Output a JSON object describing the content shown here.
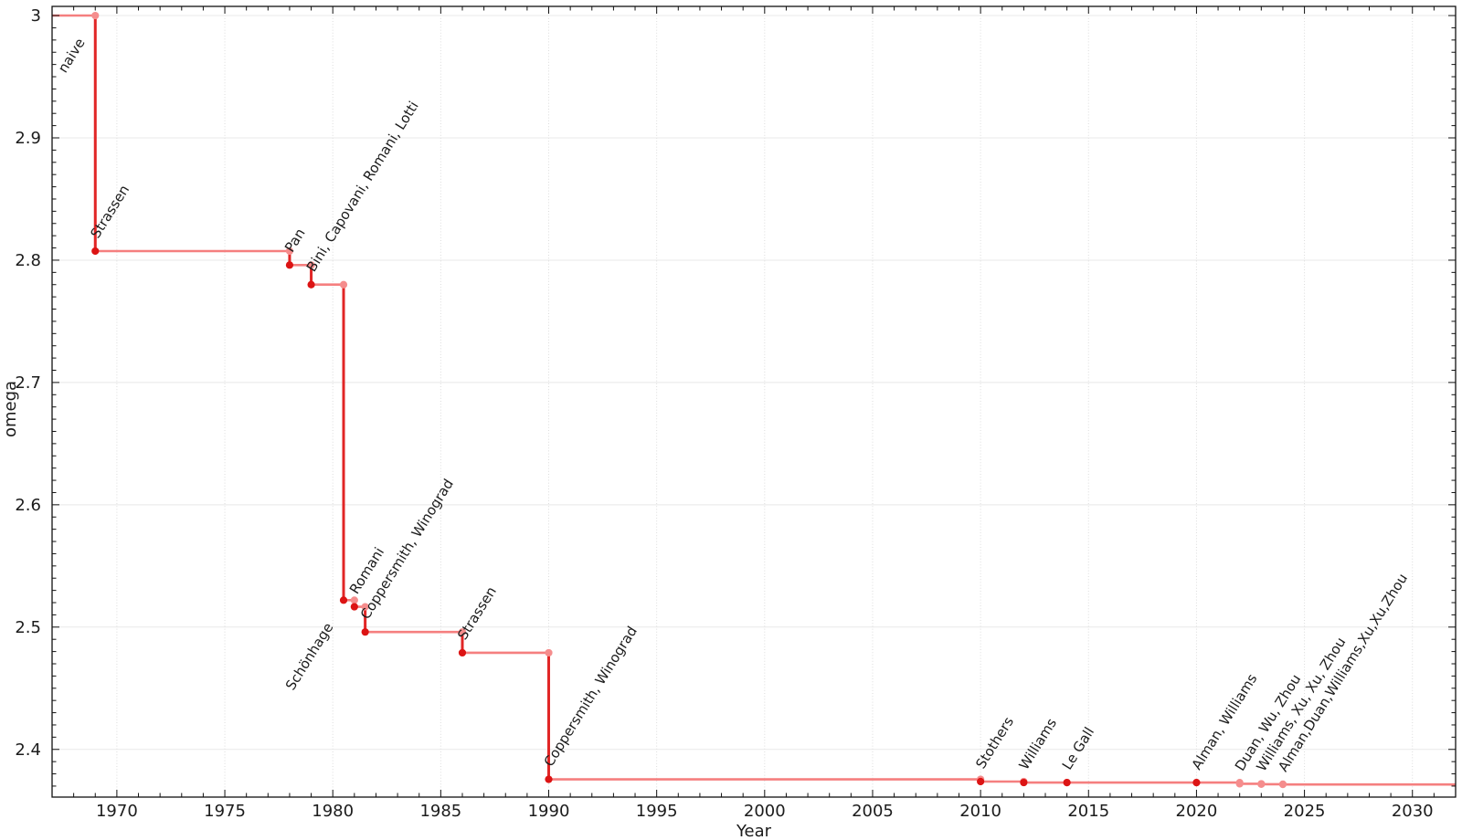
{
  "chart_data": {
    "type": "line",
    "subtype": "step-post",
    "title": "",
    "xlabel": "Year",
    "ylabel": "omega",
    "xlim": [
      1967,
      2032
    ],
    "ylim": [
      2.361,
      3.0075
    ],
    "grid": true,
    "legend": "none",
    "x_ticks": [
      1970,
      1975,
      1980,
      1985,
      1990,
      1995,
      2000,
      2005,
      2010,
      2015,
      2020,
      2025,
      2030
    ],
    "x_tick_labels": [
      "1970",
      "1975",
      "1980",
      "1985",
      "1990",
      "1995",
      "2000",
      "2005",
      "2010",
      "2015",
      "2020",
      "2025",
      "2030"
    ],
    "y_ticks": [
      2.4,
      2.5,
      2.6,
      2.7,
      2.8,
      2.9,
      3.0
    ],
    "y_tick_labels": [
      "2.4",
      "2.5",
      "2.6",
      "2.7",
      "2.8",
      "2.9",
      "3"
    ],
    "x_minor_step": 1,
    "y_minor_step": 0.01,
    "start_omega": 3,
    "start_label": {
      "text": "naive",
      "year": 1969,
      "omega": 3,
      "anchor": "end",
      "color": "#1a1a1a"
    },
    "points": [
      {
        "label": "Strassen",
        "year": 1969,
        "omega": 2.8074,
        "marker": "dark",
        "anchor": "start",
        "label_color": "#1a1a1a"
      },
      {
        "label": "Pan",
        "year": 1978,
        "omega": 2.796,
        "marker": "dark",
        "anchor": "start",
        "label_color": "#1a1a1a"
      },
      {
        "label": "Bini, Capovani, Romani, Lotti",
        "year": 1979,
        "omega": 2.78,
        "marker": "dark",
        "anchor": "start",
        "label_color": "#1a1a1a"
      },
      {
        "label": "Schönhage",
        "year": 1980.5,
        "omega": 2.522,
        "marker": "dark",
        "anchor": "end",
        "label_color": "#1a1a1a"
      },
      {
        "label": "Romani",
        "year": 1981,
        "omega": 2.5166,
        "marker": "dark",
        "anchor": "start",
        "label_color": "#1a1a1a"
      },
      {
        "label": "Coppersmith, Winograd",
        "year": 1981.5,
        "omega": 2.496,
        "marker": "dark",
        "anchor": "start",
        "label_color": "#1a1a1a"
      },
      {
        "label": "Strassen",
        "year": 1986,
        "omega": 2.479,
        "marker": "dark",
        "anchor": "start",
        "label_color": "#1a1a1a"
      },
      {
        "label": "Coppersmith, Winograd",
        "year": 1990,
        "omega": 2.3755,
        "marker": "dark",
        "anchor": "start",
        "label_color": "#1a1a1a"
      },
      {
        "label": "Stothers",
        "year": 2010,
        "omega": 2.3737,
        "marker": "dark",
        "anchor": "start",
        "label_color": "#1a1a1a"
      },
      {
        "label": "Williams",
        "year": 2012,
        "omega": 2.3729,
        "marker": "dark",
        "anchor": "start",
        "label_color": "#1a1a1a"
      },
      {
        "label": "Le Gall",
        "year": 2014,
        "omega": 2.3728639,
        "marker": "dark",
        "anchor": "start",
        "label_color": "#1a1a1a"
      },
      {
        "label": "Alman, Williams",
        "year": 2020,
        "omega": 2.3728596,
        "marker": "dark",
        "anchor": "start",
        "label_color": "#1a1a1a"
      },
      {
        "label": "Duan, Wu, Zhou",
        "year": 2022,
        "omega": 2.371866,
        "marker": "pink",
        "anchor": "start",
        "label_color": "#969696"
      },
      {
        "label": "Williams, Xu, Xu, Zhou",
        "year": 2023,
        "omega": 2.371552,
        "marker": "pink",
        "anchor": "start",
        "label_color": "#969696"
      },
      {
        "label": "Alman,Duan,Williams,Xu,Xu,Zhou",
        "year": 2024,
        "omega": 2.371339,
        "marker": "pink",
        "anchor": "start",
        "label_color": "#969696"
      }
    ],
    "colors": {
      "step_line": "#f57f7f",
      "drop_line": "#e12626",
      "dark_marker": "#dc1414",
      "pink_marker": "#f58d8d",
      "grid": "#e8e8e8",
      "grid_dotted": "#dcdcdc",
      "axis": "#111111",
      "tick_label": "#1c1c1c"
    }
  }
}
